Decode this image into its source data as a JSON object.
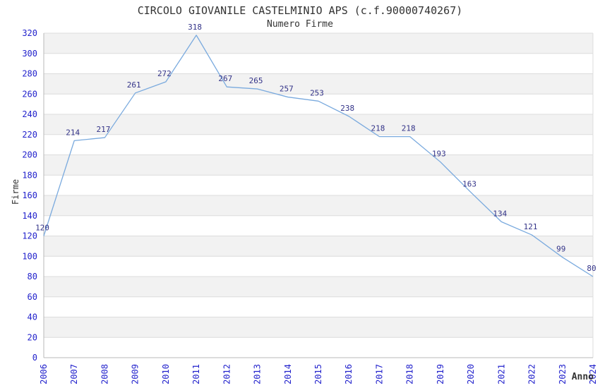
{
  "chart_data": {
    "type": "line",
    "title": "CIRCOLO GIOVANILE CASTELMINIO APS (c.f.90000740267)",
    "subtitle": "Numero Firme",
    "xlabel": "Anno",
    "ylabel": "Firme",
    "categories": [
      "2006",
      "2007",
      "2008",
      "2009",
      "2010",
      "2011",
      "2012",
      "2013",
      "2014",
      "2015",
      "2016",
      "2017",
      "2018",
      "2019",
      "2020",
      "2021",
      "2022",
      "2023",
      "2024"
    ],
    "series": [
      {
        "name": "Numero Firme",
        "values": [
          120,
          214,
          217,
          261,
          272,
          318,
          267,
          265,
          257,
          253,
          238,
          218,
          218,
          193,
          163,
          134,
          121,
          99,
          80
        ]
      }
    ],
    "ylim": [
      0,
      320
    ],
    "ytick_step": 20,
    "grid": true,
    "legend_position": "none",
    "data_labels_shown": true,
    "colors": {
      "line": "#7aaade",
      "tick_label": "#2222cc",
      "data_label": "#333388",
      "band_even": "#ffffff",
      "band_odd": "#f2f2f2",
      "gridline": "#dcdcdc",
      "axis_line": "#b8b8b8",
      "title_text": "#333333"
    }
  }
}
